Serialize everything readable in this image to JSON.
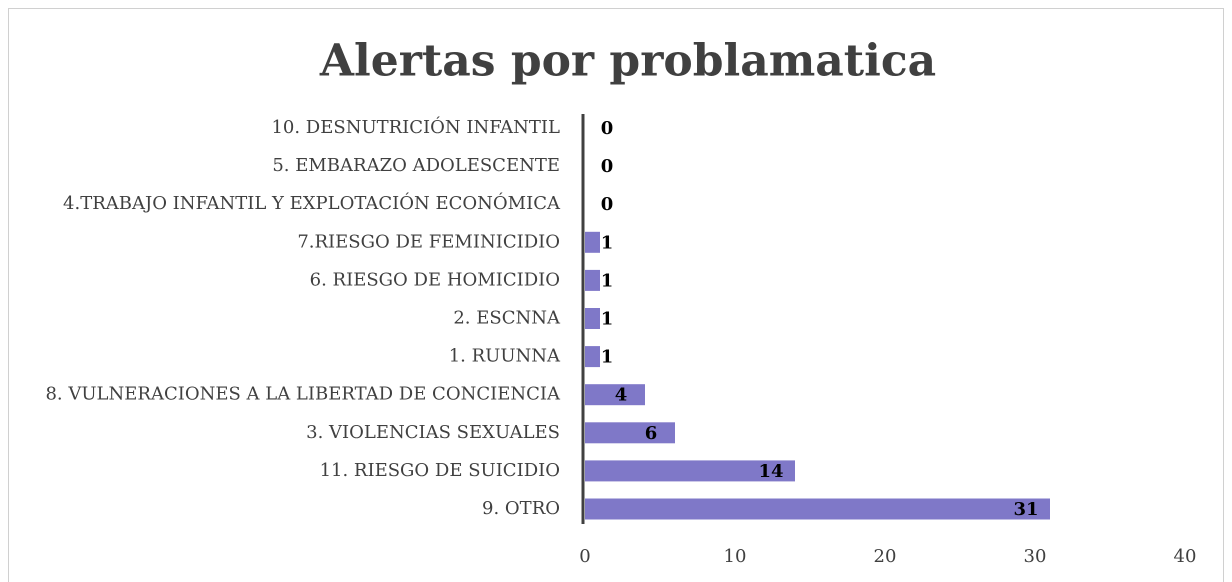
{
  "chart_data": {
    "type": "barh",
    "title": "Alertas por problamatica",
    "categories": [
      "10. DESNUTRICIÓN INFANTIL",
      "5. EMBARAZO ADOLESCENTE",
      "4.TRABAJO INFANTIL Y EXPLOTACIÓN ECONÓMICA",
      "7.RIESGO DE FEMINICIDIO",
      "6. RIESGO DE HOMICIDIO",
      "2. ESCNNA",
      "1. RUUNNA",
      "8. VULNERACIONES A LA LIBERTAD DE CONCIENCIA",
      "3. VIOLENCIAS SEXUALES",
      "11. RIESGO DE SUICIDIO",
      "9. OTRO"
    ],
    "values": [
      0,
      0,
      0,
      1,
      1,
      1,
      1,
      4,
      6,
      14,
      31
    ],
    "color": "#7f78c8",
    "xlim": [
      0,
      40
    ],
    "xticks": [
      0,
      10,
      20,
      30,
      40
    ],
    "grid": false
  }
}
